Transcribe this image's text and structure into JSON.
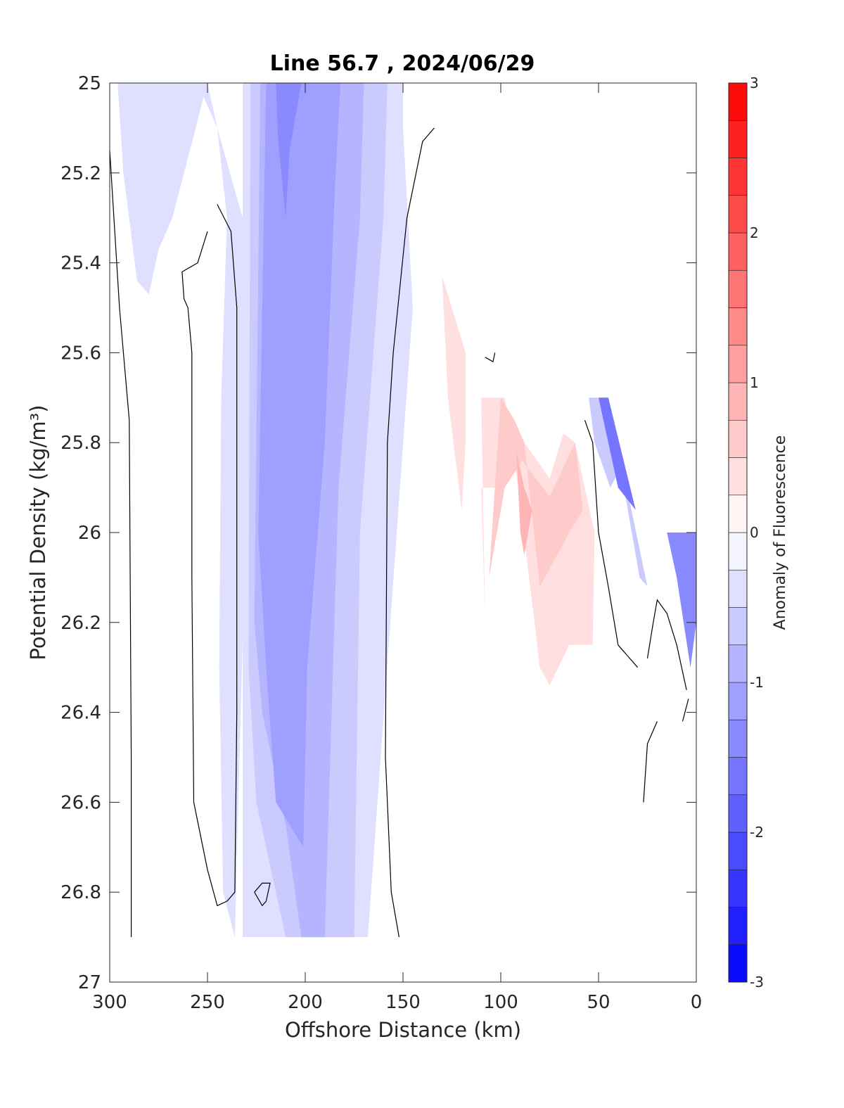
{
  "chart_data": {
    "type": "heatmap",
    "title": "Line 56.7 , 2024/06/29",
    "xlabel": "Offshore Distance (km)",
    "ylabel": "Potential Density (kg/m³)",
    "xlim": [
      300,
      0
    ],
    "ylim": [
      27,
      25
    ],
    "x_reversed": true,
    "y_reversed": true,
    "x_ticks": [
      300,
      250,
      200,
      150,
      100,
      50,
      0
    ],
    "y_ticks": [
      25,
      25.2,
      25.4,
      25.6,
      25.8,
      26,
      26.2,
      26.4,
      26.6,
      26.8,
      27
    ],
    "colorbar": {
      "label": "Anomaly of Fluorescence",
      "range": [
        -3,
        3
      ],
      "ticks": [
        -3,
        -2,
        -1,
        0,
        1,
        2,
        3
      ],
      "levels": 24,
      "colormap": "blue-white-red",
      "low_color": "#0000ff",
      "high_color": "#ff0000"
    },
    "regions": [
      {
        "name": "negative band west",
        "value": -0.375,
        "points": [
          [
            296,
            25
          ],
          [
            250,
            25
          ],
          [
            245,
            25.1
          ],
          [
            240,
            25.3
          ],
          [
            243,
            25.7
          ],
          [
            244,
            26.3
          ],
          [
            242,
            26.8
          ],
          [
            236,
            26.9
          ],
          [
            230,
            25.9
          ],
          [
            232,
            25.3
          ],
          [
            245,
            25.1
          ],
          [
            252,
            25.03
          ],
          [
            256,
            25.1
          ],
          [
            268,
            25.3
          ],
          [
            275,
            25.37
          ],
          [
            280,
            25.47
          ],
          [
            286,
            25.44
          ],
          [
            293,
            25.2
          ]
        ]
      },
      {
        "name": "negative core band",
        "value": -0.375,
        "points": [
          [
            232,
            25
          ],
          [
            150,
            25
          ],
          [
            150,
            25.1
          ],
          [
            145,
            25.5
          ],
          [
            168,
            26.9
          ],
          [
            232,
            26.9
          ],
          [
            232,
            25.2
          ]
        ]
      },
      {
        "name": "negative core band inner",
        "value": -0.625,
        "points": [
          [
            228,
            25
          ],
          [
            158,
            25
          ],
          [
            160,
            25.3
          ],
          [
            172,
            26
          ],
          [
            175,
            26.9
          ],
          [
            210,
            26.9
          ],
          [
            225,
            26.6
          ],
          [
            229,
            26.3
          ]
        ]
      },
      {
        "name": "negative core band inner 2",
        "value": -0.875,
        "points": [
          [
            223,
            25
          ],
          [
            170,
            25
          ],
          [
            172,
            25.3
          ],
          [
            183,
            25.9
          ],
          [
            190,
            26.9
          ],
          [
            202,
            26.9
          ],
          [
            210,
            26.65
          ],
          [
            222,
            26.4
          ],
          [
            226,
            26.2
          ]
        ]
      },
      {
        "name": "negative core band inner 3",
        "value": -1.125,
        "points": [
          [
            220,
            25
          ],
          [
            182,
            25
          ],
          [
            185,
            25.25
          ],
          [
            190,
            25.8
          ],
          [
            199,
            26.3
          ],
          [
            201,
            26.7
          ],
          [
            215,
            26.6
          ],
          [
            220,
            26.3
          ],
          [
            224,
            26
          ]
        ]
      },
      {
        "name": "negative core max",
        "value": -1.375,
        "points": [
          [
            215,
            25
          ],
          [
            202,
            25
          ],
          [
            208,
            25.15
          ],
          [
            210,
            25.3
          ],
          [
            214,
            25.12
          ]
        ]
      },
      {
        "name": "negative nearshore",
        "value": -0.625,
        "points": [
          [
            55,
            25.7
          ],
          [
            45,
            25.7
          ],
          [
            29,
            26.1
          ],
          [
            25,
            26.12
          ],
          [
            38,
            25.85
          ],
          [
            44,
            25.9
          ],
          [
            52,
            25.8
          ]
        ]
      },
      {
        "name": "negative nearshore strong",
        "value": -1.625,
        "points": [
          [
            50,
            25.7
          ],
          [
            45,
            25.7
          ],
          [
            31,
            25.95
          ],
          [
            40,
            25.9
          ]
        ]
      },
      {
        "name": "negative coastal",
        "value": -1.375,
        "points": [
          [
            15,
            26
          ],
          [
            0,
            26
          ],
          [
            0,
            26.2
          ],
          [
            3,
            26.3
          ],
          [
            10,
            26.1
          ]
        ]
      },
      {
        "name": "positive offshore filament",
        "value": 0.375,
        "points": [
          [
            130,
            25.43
          ],
          [
            118,
            25.6
          ],
          [
            118,
            25.8
          ],
          [
            120,
            25.95
          ],
          [
            127,
            25.7
          ]
        ]
      },
      {
        "name": "positive patch",
        "value": 0.375,
        "points": [
          [
            110,
            25.7
          ],
          [
            98,
            25.7
          ],
          [
            91,
            25.9
          ],
          [
            80,
            26.3
          ],
          [
            75,
            26.34
          ],
          [
            65,
            26.25
          ],
          [
            53,
            26.25
          ],
          [
            52,
            26
          ],
          [
            62,
            25.8
          ],
          [
            68,
            25.78
          ],
          [
            75,
            25.88
          ],
          [
            88,
            25.8
          ],
          [
            100,
            25.9
          ],
          [
            110,
            25.9
          ],
          [
            108,
            26.2
          ]
        ]
      },
      {
        "name": "positive patch inner",
        "value": 0.625,
        "points": [
          [
            100,
            25.7
          ],
          [
            93,
            25.75
          ],
          [
            88,
            25.8
          ],
          [
            80,
            26.12
          ],
          [
            65,
            26.0
          ],
          [
            58,
            25.95
          ],
          [
            62,
            25.8
          ],
          [
            75,
            25.92
          ],
          [
            89,
            25.84
          ],
          [
            98,
            25.9
          ],
          [
            106,
            26.1
          ]
        ]
      },
      {
        "name": "positive patch max",
        "value": 0.875,
        "points": [
          [
            92,
            25.82
          ],
          [
            90,
            26
          ],
          [
            88,
            26.05
          ],
          [
            84,
            25.95
          ],
          [
            88,
            25.9
          ]
        ]
      }
    ],
    "zero_contours": [
      {
        "points": [
          [
            300,
            25.15
          ],
          [
            295,
            25.5
          ],
          [
            290,
            25.75
          ],
          [
            289,
            26.5
          ],
          [
            289,
            26.9
          ]
        ]
      },
      {
        "points": [
          [
            245,
            25.27
          ],
          [
            238,
            25.33
          ],
          [
            235,
            25.5
          ],
          [
            235,
            26.4
          ],
          [
            236,
            26.8
          ],
          [
            240,
            26.82
          ],
          [
            245,
            26.83
          ],
          [
            250,
            26.75
          ],
          [
            257,
            26.6
          ],
          [
            258,
            26.1
          ],
          [
            258,
            25.6
          ],
          [
            260,
            25.5
          ],
          [
            262,
            25.48
          ],
          [
            263,
            25.42
          ],
          [
            255,
            25.4
          ],
          [
            250,
            25.33
          ]
        ]
      },
      {
        "points": [
          [
            134,
            25.1
          ],
          [
            140,
            25.13
          ],
          [
            148,
            25.3
          ],
          [
            155,
            25.6
          ],
          [
            158,
            25.8
          ],
          [
            159,
            26.5
          ],
          [
            156,
            26.8
          ],
          [
            152,
            26.9
          ]
        ]
      },
      {
        "points": [
          [
            108,
            25.61
          ],
          [
            104,
            25.62
          ],
          [
            103,
            25.6
          ]
        ]
      },
      {
        "points": [
          [
            57,
            25.75
          ],
          [
            53,
            25.8
          ],
          [
            50,
            26.0
          ],
          [
            45,
            26.12
          ],
          [
            40,
            26.25
          ],
          [
            30,
            26.3
          ]
        ]
      },
      {
        "points": [
          [
            25,
            26.28
          ],
          [
            22,
            26.2
          ],
          [
            20,
            26.15
          ],
          [
            15,
            26.18
          ],
          [
            10,
            26.25
          ],
          [
            5,
            26.35
          ]
        ]
      },
      {
        "points": [
          [
            27,
            26.6
          ],
          [
            25,
            26.47
          ],
          [
            20,
            26.42
          ]
        ]
      },
      {
        "points": [
          [
            7,
            26.42
          ],
          [
            4,
            26.37
          ]
        ]
      },
      {
        "points": [
          [
            226,
            26.8
          ],
          [
            222,
            26.83
          ],
          [
            220,
            26.82
          ],
          [
            218,
            26.78
          ],
          [
            222,
            26.78
          ],
          [
            226,
            26.8
          ]
        ]
      }
    ]
  }
}
